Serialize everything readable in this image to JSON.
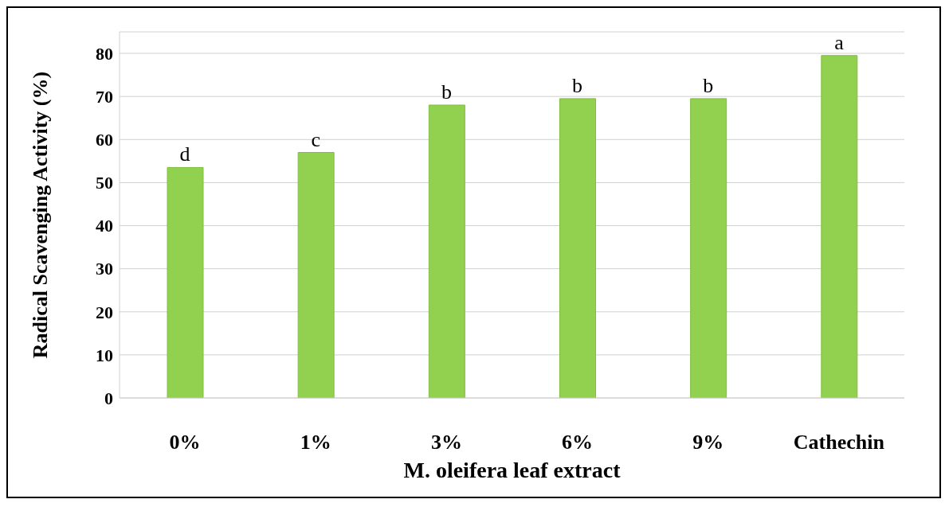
{
  "chart_data": {
    "type": "bar",
    "xlabel": "M. oleifera leaf extract",
    "ylabel": "Radical Scavenging Activity (%)",
    "categories": [
      "0%",
      "1%",
      "3%",
      "6%",
      "9%",
      "Cathechin"
    ],
    "values": [
      53.5,
      57,
      68,
      69.5,
      69.5,
      79.5
    ],
    "color": "#92d050",
    "ylim": [
      0,
      85
    ],
    "yticks": [
      0,
      10,
      20,
      30,
      40,
      50,
      60,
      70,
      80
    ],
    "grid": "y",
    "annotations": [
      {
        "text": "d",
        "x": "0%",
        "y": 53.5
      },
      {
        "text": "c",
        "x": "1%",
        "y": 57
      },
      {
        "text": "b",
        "x": "3%",
        "y": 68
      },
      {
        "text": "b",
        "x": "6%",
        "y": 69.5
      },
      {
        "text": "b",
        "x": "9%",
        "y": 69.5
      },
      {
        "text": "a",
        "x": "Cathechin",
        "y": 79.5
      }
    ]
  }
}
